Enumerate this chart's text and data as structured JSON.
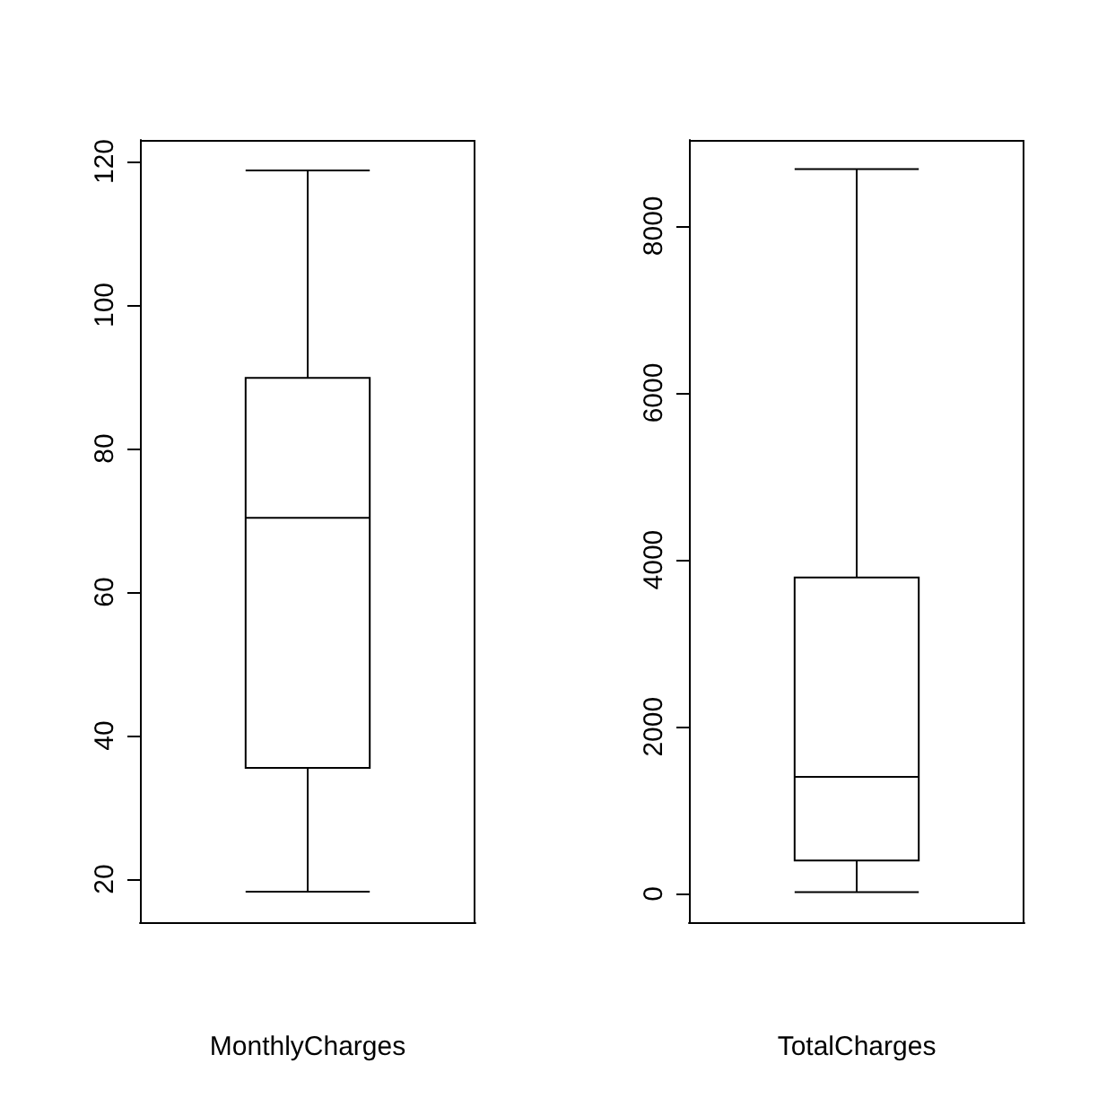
{
  "chart_data": [
    {
      "type": "box",
      "xlabel": "MonthlyCharges",
      "categories": [
        null
      ],
      "boxes": [
        {
          "low": 18.25,
          "q1": 35.5,
          "median": 70.35,
          "q3": 89.85,
          "high": 118.75
        }
      ],
      "color": "#000000",
      "ylim": [
        14,
        123
      ],
      "yticks": [
        20,
        40,
        60,
        80,
        100,
        120
      ],
      "tick_labels": "y",
      "grid": false
    },
    {
      "type": "box",
      "xlabel": "TotalCharges",
      "categories": [
        null
      ],
      "boxes": [
        {
          "low": 19,
          "q1": 400,
          "median": 1400,
          "q3": 3790,
          "high": 8680
        }
      ],
      "color": "#000000",
      "ylim": [
        -340,
        9030
      ],
      "yticks": [
        0,
        2000,
        4000,
        6000,
        8000
      ],
      "tick_labels": "y",
      "grid": false
    }
  ]
}
